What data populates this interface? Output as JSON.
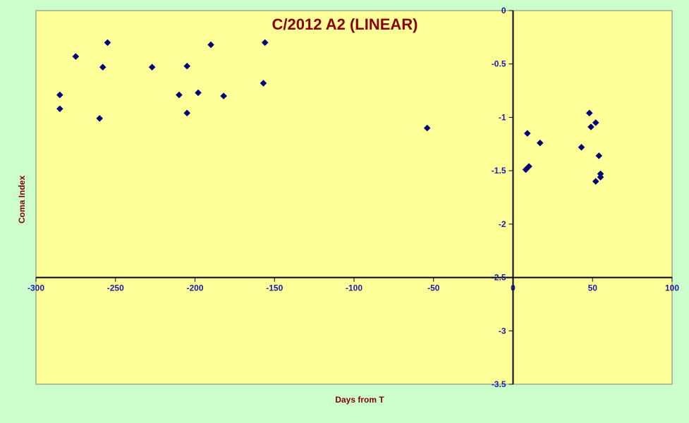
{
  "chart_data": {
    "type": "scatter",
    "title": "C/2012 A2 (LINEAR)",
    "xlabel": "Days from T",
    "ylabel": "Coma Index",
    "xlim": [
      -300,
      100
    ],
    "ylim": [
      -3.5,
      0
    ],
    "x_ticks": [
      -300,
      -250,
      -200,
      -150,
      -100,
      -50,
      0,
      50,
      100
    ],
    "y_ticks": [
      0,
      -0.5,
      -1,
      -1.5,
      -2,
      -2.5,
      -3,
      -3.5
    ],
    "x_tick_labels": [
      "-300",
      "-250",
      "-200",
      "-150",
      "-100",
      "-50",
      "0",
      "50",
      "100"
    ],
    "y_tick_labels": [
      "0",
      "-0.5",
      "-1",
      "-1.5",
      "-2",
      "-2.5",
      "-3",
      "-3.5"
    ],
    "grid": false,
    "legend": "none",
    "colors": {
      "page_background": "#CCFFCC",
      "plot_background": "#FFFF99",
      "marker": "#000080",
      "title": "#8B0000",
      "axis_title": "#800000",
      "tick_label": "#1A1AA6"
    },
    "series": [
      {
        "marker": "diamond",
        "points": [
          {
            "x": -285,
            "y": -0.79
          },
          {
            "x": -285,
            "y": -0.92
          },
          {
            "x": -275,
            "y": -0.43
          },
          {
            "x": -260,
            "y": -1.01
          },
          {
            "x": -258,
            "y": -0.53
          },
          {
            "x": -255,
            "y": -0.3
          },
          {
            "x": -227,
            "y": -0.53
          },
          {
            "x": -210,
            "y": -0.79
          },
          {
            "x": -205,
            "y": -0.52
          },
          {
            "x": -205,
            "y": -0.96
          },
          {
            "x": -198,
            "y": -0.77
          },
          {
            "x": -190,
            "y": -0.32
          },
          {
            "x": -182,
            "y": -0.8
          },
          {
            "x": -157,
            "y": -0.68
          },
          {
            "x": -156,
            "y": -0.3
          },
          {
            "x": -54,
            "y": -1.1
          },
          {
            "x": 8,
            "y": -1.49
          },
          {
            "x": 9,
            "y": -1.15
          },
          {
            "x": 10,
            "y": -1.46
          },
          {
            "x": 17,
            "y": -1.24
          },
          {
            "x": 43,
            "y": -1.28
          },
          {
            "x": 48,
            "y": -0.96
          },
          {
            "x": 49,
            "y": -1.09
          },
          {
            "x": 52,
            "y": -1.05
          },
          {
            "x": 52,
            "y": -1.6
          },
          {
            "x": 54,
            "y": -1.36
          },
          {
            "x": 55,
            "y": -1.53
          },
          {
            "x": 55,
            "y": -1.56
          }
        ]
      }
    ]
  }
}
